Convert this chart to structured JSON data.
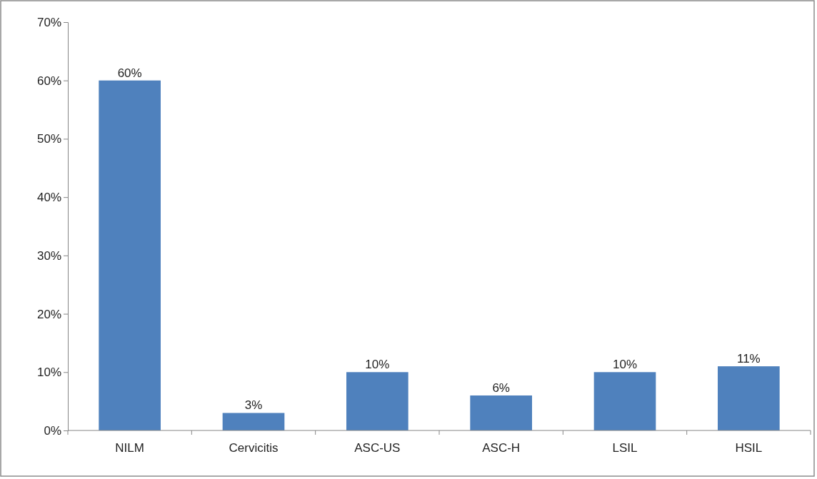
{
  "chart_data": {
    "type": "bar",
    "categories": [
      "NILM",
      "Cervicitis",
      "ASC-US",
      "ASC-H",
      "LSIL",
      "HSIL"
    ],
    "values": [
      60,
      3,
      10,
      6,
      10,
      11
    ],
    "value_labels": [
      "60%",
      "3%",
      "10%",
      "6%",
      "10%",
      "11%"
    ],
    "color": "#4f81bd",
    "ylim": [
      0,
      70
    ],
    "yticks": [
      {
        "value": 0,
        "label": "0%"
      },
      {
        "value": 10,
        "label": "10%"
      },
      {
        "value": 20,
        "label": "20%"
      },
      {
        "value": 30,
        "label": "30%"
      },
      {
        "value": 40,
        "label": "40%"
      },
      {
        "value": 50,
        "label": "50%"
      },
      {
        "value": 60,
        "label": "60%"
      },
      {
        "value": 70,
        "label": "70%"
      }
    ],
    "grid": false
  }
}
